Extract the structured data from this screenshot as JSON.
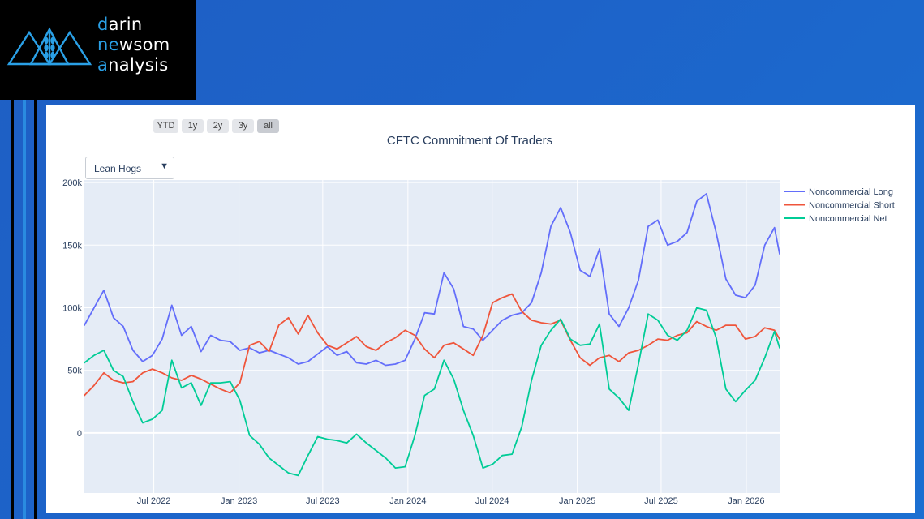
{
  "logo": {
    "lines": [
      {
        "first": "d",
        "rest": "arin"
      },
      {
        "pre": "ne",
        "mid": "w",
        "post": "som"
      },
      {
        "first": "a",
        "rest": "nalysis"
      }
    ]
  },
  "range_buttons": [
    "YTD",
    "1y",
    "2y",
    "3y",
    "all"
  ],
  "active_range": "all",
  "dropdown": {
    "selected": "Lean Hogs"
  },
  "chart_data": {
    "type": "line",
    "title": "CFTC Commitment Of Traders",
    "xlabel": "",
    "ylabel": "",
    "x_ticks": [
      "Jul 2022",
      "Jan 2023",
      "Jul 2023",
      "Jan 2024",
      "Jul 2024",
      "Jan 2025",
      "Jul 2025",
      "Jan 2026"
    ],
    "y_ticks": [
      "0",
      "50k",
      "100k",
      "150k",
      "200k"
    ],
    "ylim": [
      -48000,
      202000
    ],
    "xlim": [
      "2022-02-01",
      "2026-03-14"
    ],
    "grid": true,
    "legend_position": "right",
    "colors": {
      "Noncommercial Long": "#636efa",
      "Noncommercial Short": "#ef553b",
      "Noncommercial Net": "#00cc96"
    },
    "series": [
      {
        "name": "Noncommercial Long",
        "x": [
          "2022-02-01",
          "2022-02-22",
          "2022-03-15",
          "2022-04-05",
          "2022-04-26",
          "2022-05-17",
          "2022-06-07",
          "2022-06-28",
          "2022-07-19",
          "2022-08-09",
          "2022-08-30",
          "2022-09-20",
          "2022-10-11",
          "2022-11-01",
          "2022-11-22",
          "2022-12-13",
          "2023-01-03",
          "2023-01-24",
          "2023-02-14",
          "2023-03-07",
          "2023-03-28",
          "2023-04-18",
          "2023-05-09",
          "2023-05-30",
          "2023-06-20",
          "2023-07-11",
          "2023-08-01",
          "2023-08-22",
          "2023-09-12",
          "2023-10-03",
          "2023-10-24",
          "2023-11-14",
          "2023-12-05",
          "2023-12-26",
          "2024-01-16",
          "2024-02-06",
          "2024-02-27",
          "2024-03-19",
          "2024-04-09",
          "2024-04-30",
          "2024-05-21",
          "2024-06-11",
          "2024-07-02",
          "2024-07-23",
          "2024-08-13",
          "2024-09-03",
          "2024-09-24",
          "2024-10-15",
          "2024-11-05",
          "2024-11-26",
          "2024-12-17",
          "2025-01-07",
          "2025-01-28",
          "2025-02-18",
          "2025-03-11",
          "2025-04-01",
          "2025-04-22",
          "2025-05-13",
          "2025-06-03",
          "2025-06-24",
          "2025-07-15",
          "2025-08-05",
          "2025-08-26",
          "2025-09-16",
          "2025-10-07",
          "2025-10-28",
          "2025-11-18",
          "2025-12-09",
          "2025-12-30",
          "2026-01-20",
          "2026-02-10",
          "2026-03-03",
          "2026-03-14"
        ],
        "values": [
          86000,
          100000,
          114000,
          92000,
          85000,
          66000,
          57000,
          62000,
          75000,
          102000,
          78000,
          85000,
          65000,
          78000,
          74000,
          73000,
          66000,
          68000,
          64000,
          66000,
          63000,
          60000,
          55000,
          57000,
          63000,
          69000,
          62000,
          65000,
          56000,
          55000,
          58000,
          54000,
          55000,
          58000,
          75000,
          96000,
          95000,
          128000,
          115000,
          85000,
          83000,
          74000,
          82000,
          90000,
          94000,
          96000,
          104000,
          128000,
          165000,
          180000,
          160000,
          130000,
          125000,
          147000,
          95000,
          85000,
          100000,
          122000,
          165000,
          170000,
          150000,
          153000,
          160000,
          185000,
          191000,
          160000,
          123000,
          110000,
          108000,
          118000,
          150000,
          164000,
          143000
        ]
      },
      {
        "name": "Noncommercial Short",
        "x": [
          "2022-02-01",
          "2022-02-22",
          "2022-03-15",
          "2022-04-05",
          "2022-04-26",
          "2022-05-17",
          "2022-06-07",
          "2022-06-28",
          "2022-07-19",
          "2022-08-09",
          "2022-08-30",
          "2022-09-20",
          "2022-10-11",
          "2022-11-01",
          "2022-11-22",
          "2022-12-13",
          "2023-01-03",
          "2023-01-24",
          "2023-02-14",
          "2023-03-07",
          "2023-03-28",
          "2023-04-18",
          "2023-05-09",
          "2023-05-30",
          "2023-06-20",
          "2023-07-11",
          "2023-08-01",
          "2023-08-22",
          "2023-09-12",
          "2023-10-03",
          "2023-10-24",
          "2023-11-14",
          "2023-12-05",
          "2023-12-26",
          "2024-01-16",
          "2024-02-06",
          "2024-02-27",
          "2024-03-19",
          "2024-04-09",
          "2024-04-30",
          "2024-05-21",
          "2024-06-11",
          "2024-07-02",
          "2024-07-23",
          "2024-08-13",
          "2024-09-03",
          "2024-09-24",
          "2024-10-15",
          "2024-11-05",
          "2024-11-26",
          "2024-12-17",
          "2025-01-07",
          "2025-01-28",
          "2025-02-18",
          "2025-03-11",
          "2025-04-01",
          "2025-04-22",
          "2025-05-13",
          "2025-06-03",
          "2025-06-24",
          "2025-07-15",
          "2025-08-05",
          "2025-08-26",
          "2025-09-16",
          "2025-10-07",
          "2025-10-28",
          "2025-11-18",
          "2025-12-09",
          "2025-12-30",
          "2026-01-20",
          "2026-02-10",
          "2026-03-03",
          "2026-03-14"
        ],
        "values": [
          30000,
          38000,
          48000,
          42000,
          40000,
          41000,
          48000,
          51000,
          48000,
          44000,
          42000,
          46000,
          43000,
          39000,
          35000,
          32000,
          40000,
          70000,
          73000,
          65000,
          86000,
          92000,
          79000,
          94000,
          80000,
          70000,
          67000,
          72000,
          77000,
          69000,
          66000,
          72000,
          76000,
          82000,
          78000,
          67000,
          60000,
          70000,
          72000,
          67000,
          62000,
          78000,
          104000,
          108000,
          111000,
          97000,
          90000,
          88000,
          87000,
          90000,
          74000,
          60000,
          54000,
          60000,
          62000,
          57000,
          64000,
          66000,
          70000,
          75000,
          74000,
          78000,
          80000,
          89000,
          85000,
          82000,
          86000,
          86000,
          75000,
          77000,
          84000,
          82000,
          75000
        ]
      },
      {
        "name": "Noncommercial Net",
        "x": [
          "2022-02-01",
          "2022-02-22",
          "2022-03-15",
          "2022-04-05",
          "2022-04-26",
          "2022-05-17",
          "2022-06-07",
          "2022-06-28",
          "2022-07-19",
          "2022-08-09",
          "2022-08-30",
          "2022-09-20",
          "2022-10-11",
          "2022-11-01",
          "2022-11-22",
          "2022-12-13",
          "2023-01-03",
          "2023-01-24",
          "2023-02-14",
          "2023-03-07",
          "2023-03-28",
          "2023-04-18",
          "2023-05-09",
          "2023-05-30",
          "2023-06-20",
          "2023-07-11",
          "2023-08-01",
          "2023-08-22",
          "2023-09-12",
          "2023-10-03",
          "2023-10-24",
          "2023-11-14",
          "2023-12-05",
          "2023-12-26",
          "2024-01-16",
          "2024-02-06",
          "2024-02-27",
          "2024-03-19",
          "2024-04-09",
          "2024-04-30",
          "2024-05-21",
          "2024-06-11",
          "2024-07-02",
          "2024-07-23",
          "2024-08-13",
          "2024-09-03",
          "2024-09-24",
          "2024-10-15",
          "2024-11-05",
          "2024-11-26",
          "2024-12-17",
          "2025-01-07",
          "2025-01-28",
          "2025-02-18",
          "2025-03-11",
          "2025-04-01",
          "2025-04-22",
          "2025-05-13",
          "2025-06-03",
          "2025-06-24",
          "2025-07-15",
          "2025-08-05",
          "2025-08-26",
          "2025-09-16",
          "2025-10-07",
          "2025-10-28",
          "2025-11-18",
          "2025-12-09",
          "2025-12-30",
          "2026-01-20",
          "2026-02-10",
          "2026-03-03",
          "2026-03-14"
        ],
        "values": [
          56000,
          62000,
          66000,
          50000,
          45000,
          25000,
          8000,
          11000,
          18000,
          58000,
          36000,
          40000,
          22000,
          40000,
          40000,
          41000,
          26000,
          -2000,
          -9000,
          -20000,
          -26000,
          -32000,
          -34000,
          -18000,
          -3000,
          -5000,
          -6000,
          -8000,
          -1000,
          -8000,
          -14000,
          -20000,
          -28000,
          -27000,
          -2000,
          30000,
          35000,
          58000,
          43000,
          18000,
          -2000,
          -28000,
          -25000,
          -18000,
          -17000,
          5000,
          42000,
          70000,
          82000,
          91000,
          75000,
          70000,
          71000,
          87000,
          35000,
          28000,
          18000,
          55000,
          95000,
          90000,
          78000,
          74000,
          82000,
          100000,
          98000,
          76000,
          35000,
          25000,
          34000,
          42000,
          60000,
          81000,
          68000
        ]
      }
    ]
  }
}
